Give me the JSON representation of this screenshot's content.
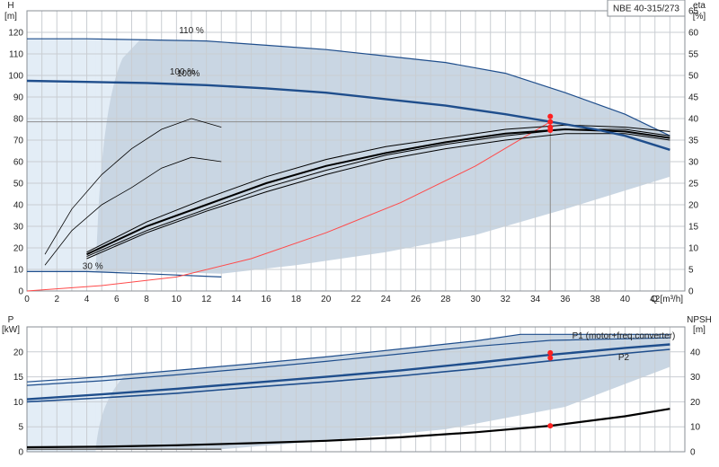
{
  "chart_data": [
    {
      "type": "line",
      "title": "NBE 40-315/273",
      "xlabel": "Q [m³/h]",
      "ylabel": "H [m]",
      "ylabel_right": "eta [%]",
      "xlim": [
        0,
        44
      ],
      "ylim": [
        0,
        130
      ],
      "ylim_right": [
        0,
        65
      ],
      "x_ticks": [
        0,
        2,
        4,
        6,
        8,
        10,
        12,
        14,
        16,
        18,
        20,
        22,
        24,
        26,
        28,
        30,
        32,
        34,
        36,
        38,
        40,
        42
      ],
      "y_ticks": [
        0,
        10,
        20,
        30,
        40,
        50,
        60,
        70,
        80,
        90,
        100,
        110,
        120
      ],
      "y_ticks_right": [
        0,
        5,
        10,
        15,
        20,
        25,
        30,
        35,
        40,
        45,
        50,
        55,
        60,
        65
      ],
      "grid": true,
      "annotations": [
        "110 %",
        "100 %",
        "100%",
        "30 %"
      ],
      "operating_point": {
        "q": 35,
        "h": 78.5
      },
      "series": [
        {
          "role": "head-110",
          "color": "#1f4e8c",
          "x": [
            0,
            4,
            8,
            12,
            16,
            20,
            24,
            28,
            32,
            36,
            40,
            43
          ],
          "y": [
            117,
            117,
            116.5,
            116,
            114,
            112,
            109,
            106,
            101,
            92,
            82,
            72
          ]
        },
        {
          "role": "head-100",
          "color": "#1f4e8c",
          "x": [
            0,
            4,
            8,
            12,
            16,
            20,
            24,
            28,
            32,
            35,
            38,
            40,
            43
          ],
          "y": [
            97.5,
            97,
            96.5,
            95.5,
            94,
            92,
            89,
            86,
            82,
            78.5,
            75,
            72,
            65.5
          ]
        },
        {
          "role": "head-30",
          "color": "#1f4e8c",
          "x": [
            0,
            4,
            8,
            13
          ],
          "y": [
            9,
            9,
            8,
            6.5
          ]
        },
        {
          "role": "system",
          "color": "#ff4a4a",
          "x": [
            0,
            5,
            10,
            15,
            20,
            25,
            30,
            35
          ],
          "y": [
            0,
            2.5,
            6.5,
            15,
            27,
            41,
            58,
            78.5
          ]
        },
        {
          "role": "eta-full",
          "color": "#000000",
          "x": [
            4,
            8,
            12,
            16,
            20,
            24,
            28,
            32,
            36,
            40,
            43
          ],
          "y": [
            8.5,
            15,
            20,
            25,
            29,
            32,
            34.5,
            36.5,
            37.5,
            37,
            35.5
          ]
        },
        {
          "role": "eta-a",
          "color": "#000000",
          "x": [
            4,
            8,
            12,
            16,
            20,
            24,
            28,
            32,
            36,
            40,
            43
          ],
          "y": [
            8,
            14,
            19,
            24,
            28,
            31.5,
            34,
            36,
            37.5,
            37.5,
            36
          ]
        },
        {
          "role": "eta-b",
          "color": "#000000",
          "x": [
            4,
            8,
            12,
            16,
            20,
            24,
            28,
            32,
            36,
            40,
            43
          ],
          "y": [
            7.5,
            13.5,
            18.5,
            23,
            27,
            30.5,
            33,
            35,
            36.5,
            36.5,
            35
          ]
        },
        {
          "role": "eta-c",
          "color": "#000000",
          "x": [
            4,
            8,
            12,
            16,
            20,
            24,
            28,
            32,
            36,
            40,
            43
          ],
          "y": [
            9,
            16,
            21.5,
            26.5,
            30.5,
            33.5,
            35.5,
            37.5,
            38.5,
            38,
            37
          ]
        },
        {
          "role": "eta-d",
          "color": "#000000",
          "x": [
            1.2,
            3,
            5,
            7,
            9,
            11,
            13
          ],
          "y": [
            6,
            14,
            20,
            24,
            28.5,
            31,
            30
          ]
        },
        {
          "role": "eta-e",
          "color": "#000000",
          "x": [
            1.2,
            3,
            5,
            7,
            9,
            11,
            13
          ],
          "y": [
            8.5,
            19,
            27,
            33,
            37.5,
            40,
            38
          ]
        }
      ]
    },
    {
      "type": "line",
      "xlabel": "",
      "ylabel": "P [kW]",
      "ylabel_right": "NPSH [m]",
      "xlim": [
        0,
        44
      ],
      "ylim": [
        0,
        25
      ],
      "ylim_right": [
        0,
        50
      ],
      "y_ticks": [
        0,
        5,
        10,
        15,
        20
      ],
      "y_ticks_right": [
        0,
        10,
        20,
        30,
        40
      ],
      "grid": true,
      "series": [
        {
          "name": "P1 (motor+freq.converter)",
          "color": "#1f4e8c",
          "x": [
            0,
            5,
            10,
            15,
            20,
            25,
            30,
            35,
            40,
            43
          ],
          "y": [
            10.5,
            11.5,
            12.6,
            13.8,
            15,
            16.3,
            17.8,
            19.4,
            20.8,
            21.5
          ]
        },
        {
          "name": "P2",
          "color": "#1f4e8c",
          "x": [
            0,
            5,
            10,
            15,
            20,
            25,
            30,
            35,
            40,
            43
          ],
          "y": [
            10,
            10.8,
            11.7,
            12.9,
            14,
            15.2,
            16.6,
            18.2,
            19.7,
            20.5
          ]
        },
        {
          "role": "P1-110",
          "color": "#1f4e8c",
          "x": [
            0,
            5,
            10,
            15,
            20,
            25,
            30,
            33,
            43
          ],
          "y": [
            14,
            15,
            16.3,
            17.6,
            19,
            20.6,
            22.2,
            23.5,
            23.5
          ]
        },
        {
          "role": "P2-110",
          "color": "#1f4e8c",
          "x": [
            0,
            5,
            10,
            15,
            20,
            25,
            30,
            35,
            43
          ],
          "y": [
            13.3,
            14.2,
            15.4,
            16.7,
            18.1,
            19.6,
            21.1,
            22.3,
            22.8
          ]
        },
        {
          "role": "NPSH",
          "color": "#000000",
          "x": [
            0,
            5,
            10,
            15,
            20,
            25,
            30,
            35,
            40,
            43
          ],
          "y": [
            0.9,
            1.0,
            1.3,
            1.7,
            2.2,
            2.9,
            3.9,
            5.2,
            7.1,
            8.6
          ]
        }
      ]
    }
  ]
}
